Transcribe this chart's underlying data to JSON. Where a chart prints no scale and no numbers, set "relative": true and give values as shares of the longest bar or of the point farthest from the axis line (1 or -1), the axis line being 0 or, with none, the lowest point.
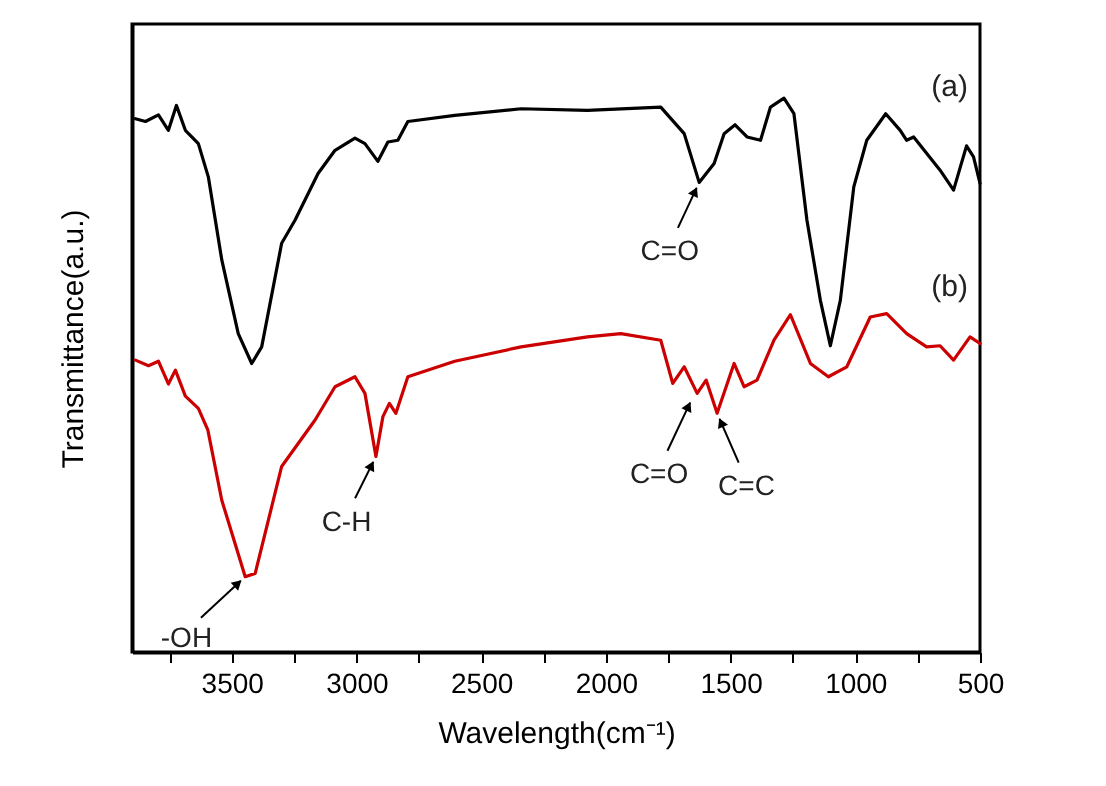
{
  "chart_data": {
    "type": "line",
    "relative": true,
    "xlabel": "Wavelength(cm⁻¹)",
    "ylabel": "Transmittance(a.u.)",
    "xlim": [
      3900,
      500
    ],
    "xticks": [
      {
        "value": 3750,
        "label": null
      },
      3500,
      {
        "value": 3250,
        "label": null
      },
      3000,
      {
        "value": 2750,
        "label": null
      },
      2500,
      {
        "value": 2250,
        "label": null
      },
      2000,
      {
        "value": 1750,
        "label": null
      },
      1500,
      {
        "value": 1250,
        "label": null
      },
      1000,
      {
        "value": 750,
        "label": null
      },
      500
    ],
    "x": [
      3886,
      3846,
      3794,
      3754,
      3722,
      3686,
      3634,
      3594,
      3540,
      3474,
      3420,
      3380,
      3300,
      3246,
      3154,
      3086,
      3006,
      2966,
      2914,
      2874,
      2834,
      2794,
      2606,
      2340,
      2074,
      1780,
      1686,
      1626,
      1566,
      1526,
      1482,
      1434,
      1380,
      1340,
      1286,
      1246,
      1194,
      1140,
      1100,
      1060,
      1006,
      954,
      878,
      820,
      794,
      766,
      660,
      606,
      554,
      526,
      500
    ],
    "series": [
      {
        "name": "(a)",
        "color": "#000000",
        "values": [
          0.963,
          0.958,
          0.97,
          0.942,
          0.987,
          0.942,
          0.918,
          0.858,
          0.708,
          0.575,
          0.521,
          0.551,
          0.738,
          0.78,
          0.864,
          0.906,
          0.928,
          0.918,
          0.886,
          0.921,
          0.924,
          0.958,
          0.969,
          0.981,
          0.978,
          0.984,
          0.936,
          0.848,
          0.882,
          0.936,
          0.952,
          0.93,
          0.924,
          0.984,
          1,
          0.972,
          0.78,
          0.635,
          0.553,
          0.635,
          0.84,
          0.924,
          0.972,
          0.942,
          0.924,
          0.93,
          0.87,
          0.834,
          0.914,
          0.894,
          0.846
        ]
      },
      {
        "name": "(b)",
        "color": "#cc0000",
        "x": [
          3886,
          3834,
          3794,
          3754,
          3726,
          3686,
          3634,
          3596,
          3540,
          3446,
          3406,
          3300,
          3166,
          3086,
          3006,
          2966,
          2922,
          2894,
          2868,
          2842,
          2794,
          2606,
          2340,
          2074,
          1940,
          1780,
          1732,
          1686,
          1634,
          1598,
          1554,
          1486,
          1446,
          1394,
          1326,
          1260,
          1180,
          1108,
          1034,
          940,
          874,
          794,
          714,
          660,
          606,
          540,
          500
        ],
        "values": [
          0.527,
          0.517,
          0.525,
          0.484,
          0.509,
          0.462,
          0.44,
          0.401,
          0.274,
          0.136,
          0.142,
          0.335,
          0.419,
          0.479,
          0.497,
          0.467,
          0.353,
          0.425,
          0.449,
          0.431,
          0.497,
          0.525,
          0.551,
          0.569,
          0.575,
          0.563,
          0.485,
          0.515,
          0.467,
          0.491,
          0.431,
          0.521,
          0.479,
          0.491,
          0.563,
          0.609,
          0.521,
          0.497,
          0.515,
          0.605,
          0.611,
          0.575,
          0.551,
          0.553,
          0.527,
          0.569,
          0.557
        ]
      }
    ],
    "annotations": [
      {
        "text": "C=O",
        "x": 1626,
        "y": 0.848
      },
      {
        "text": "C-H",
        "x": 2922,
        "y": 0.353
      },
      {
        "text": "-OH",
        "x": 3446,
        "y": 0.136
      },
      {
        "text": "C=O",
        "x": 1652,
        "y": 0.46
      },
      {
        "text": "C=C",
        "x": 1554,
        "y": 0.431
      }
    ],
    "grid": false,
    "line_style": "solid",
    "marker": "none"
  }
}
